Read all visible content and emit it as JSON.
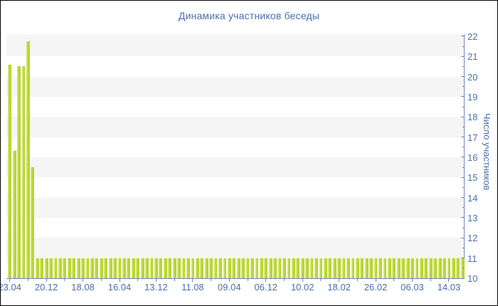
{
  "title": "Динамика участников беседы",
  "colors": {
    "title_text": "#4a6fad",
    "tick_text": "#4a6fad",
    "axis_line": "#6e86c2",
    "bar_fill": "#b9d52f",
    "bar_highlight": "#d6e57c",
    "band_gray": "#f5f5f5",
    "background": "#ffffff",
    "frame_border": "#000000"
  },
  "chart_data": {
    "type": "bar",
    "title": "Динамика участников беседы",
    "xlabel": "",
    "ylabel": "Число участников",
    "ylim": [
      10,
      22.1
    ],
    "baseline": 10,
    "grid": "alternating-horizontal-bands",
    "legend": "none",
    "y_axis_position": "right",
    "y_major_ticks": [
      10,
      11,
      12,
      13,
      14,
      15,
      16,
      17,
      18,
      19,
      20,
      21,
      22
    ],
    "y_minor_tick_step": 0.5,
    "x_tick_labels": [
      "23.04",
      "20.12",
      "18.08",
      "16.04",
      "13.12",
      "11.08",
      "09.04",
      "06.12",
      "10.02",
      "18.02",
      "26.02",
      "06.03",
      "14.03"
    ],
    "x_tick_bar_indices": [
      0,
      8,
      16,
      24,
      32,
      40,
      48,
      56,
      64,
      72,
      80,
      88,
      96
    ],
    "values": [
      20.6,
      16.3,
      20.5,
      20.5,
      21.75,
      15.5,
      11,
      11,
      11,
      11,
      11,
      11,
      11,
      11,
      11,
      11,
      11,
      11,
      11,
      11,
      11,
      11,
      11,
      11,
      11,
      11,
      11,
      11,
      11,
      11,
      11,
      11,
      11,
      11,
      11,
      11,
      11,
      11,
      11,
      11,
      11,
      11,
      11,
      11,
      11,
      11,
      11,
      11,
      11,
      11,
      11,
      11,
      11,
      11,
      11,
      11,
      11,
      11,
      11,
      11,
      11,
      11,
      11,
      11,
      11,
      11,
      11,
      11,
      11,
      11,
      11,
      11,
      11,
      11,
      11,
      11,
      11,
      11,
      11,
      11,
      11,
      11,
      11,
      11,
      11,
      11,
      11,
      11,
      11,
      11,
      11,
      11,
      11,
      11,
      11,
      11,
      11,
      11,
      11,
      11
    ]
  }
}
